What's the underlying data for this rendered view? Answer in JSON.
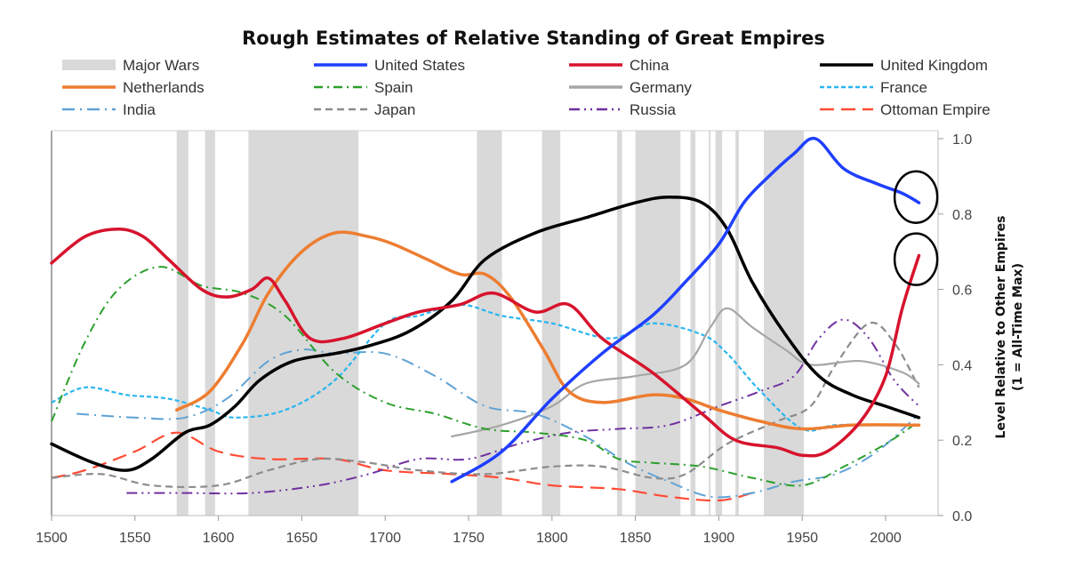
{
  "chart_data": {
    "type": "line",
    "title": "Rough Estimates of Relative Standing of Great Empires",
    "xlabel": "",
    "ylabel": "Level Relative to Other Empires",
    "ylabel_line2": "(1 = All-Time Max)",
    "xlim": [
      1500,
      2031
    ],
    "ylim": [
      0.0,
      1.0
    ],
    "x_ticks": [
      1500,
      1550,
      1600,
      1650,
      1700,
      1750,
      1800,
      1850,
      1900,
      1950,
      2000
    ],
    "x_tick_labels": [
      "1500",
      "1550",
      "1600",
      "1650",
      "1700",
      "1750",
      "1800",
      "1850",
      "1900",
      "1950",
      "2000"
    ],
    "y_ticks": [
      0.0,
      0.2,
      0.4,
      0.6,
      0.8,
      1.0
    ],
    "y_tick_labels": [
      "0.0",
      "0.2",
      "0.4",
      "0.6",
      "0.8",
      "1.0"
    ],
    "y_axis_side": "right",
    "grid": false,
    "legend_position": "top",
    "major_wars_label": "Major Wars",
    "major_wars_color": "#d9d9d9",
    "major_wars": [
      [
        1575,
        1582
      ],
      [
        1592,
        1598
      ],
      [
        1618,
        1684
      ],
      [
        1755,
        1770
      ],
      [
        1794,
        1805
      ],
      [
        1839,
        1842
      ],
      [
        1850,
        1877
      ],
      [
        1883,
        1886
      ],
      [
        1894,
        1895
      ],
      [
        1898,
        1902
      ],
      [
        1910,
        1912
      ],
      [
        1927,
        1951
      ]
    ],
    "annotations": [
      {
        "type": "circle",
        "target": "United States",
        "x": 2015,
        "y": 0.845
      },
      {
        "type": "circle",
        "target": "China",
        "x": 2015,
        "y": 0.68
      }
    ],
    "series": [
      {
        "name": "United States",
        "color": "#1f3fff",
        "style": "solid",
        "width": 3.5,
        "x": [
          1740,
          1770,
          1800,
          1830,
          1860,
          1880,
          1900,
          1915,
          1930,
          1945,
          1958,
          1975,
          1995,
          2010,
          2020
        ],
        "y": [
          0.09,
          0.17,
          0.31,
          0.43,
          0.53,
          0.62,
          0.72,
          0.83,
          0.9,
          0.96,
          1.0,
          0.92,
          0.88,
          0.855,
          0.83
        ]
      },
      {
        "name": "China",
        "color": "#d7132d",
        "style": "solid",
        "width": 3.5,
        "x": [
          1500,
          1520,
          1540,
          1555,
          1570,
          1590,
          1605,
          1620,
          1630,
          1640,
          1655,
          1675,
          1700,
          1720,
          1745,
          1765,
          1790,
          1810,
          1830,
          1860,
          1890,
          1910,
          1935,
          1950,
          1965,
          1985,
          2000,
          2010,
          2020
        ],
        "y": [
          0.67,
          0.74,
          0.76,
          0.74,
          0.68,
          0.6,
          0.58,
          0.6,
          0.63,
          0.57,
          0.47,
          0.47,
          0.51,
          0.54,
          0.56,
          0.59,
          0.54,
          0.56,
          0.47,
          0.38,
          0.27,
          0.2,
          0.18,
          0.16,
          0.17,
          0.25,
          0.37,
          0.55,
          0.69
        ]
      },
      {
        "name": "United Kingdom",
        "color": "#000000",
        "style": "solid",
        "width": 3.5,
        "x": [
          1500,
          1525,
          1545,
          1560,
          1580,
          1595,
          1610,
          1625,
          1645,
          1670,
          1690,
          1715,
          1740,
          1760,
          1790,
          1820,
          1850,
          1870,
          1890,
          1905,
          1920,
          1940,
          1960,
          1980,
          2000,
          2020
        ],
        "y": [
          0.19,
          0.14,
          0.12,
          0.15,
          0.22,
          0.24,
          0.29,
          0.36,
          0.41,
          0.43,
          0.45,
          0.49,
          0.57,
          0.68,
          0.75,
          0.79,
          0.83,
          0.845,
          0.83,
          0.76,
          0.62,
          0.48,
          0.37,
          0.32,
          0.29,
          0.26
        ]
      },
      {
        "name": "Netherlands",
        "color": "#ed7d31",
        "style": "solid",
        "width": 3.5,
        "x": [
          1575,
          1595,
          1615,
          1630,
          1650,
          1670,
          1690,
          1705,
          1725,
          1745,
          1760,
          1775,
          1795,
          1810,
          1830,
          1860,
          1880,
          1900,
          1925,
          1950,
          1980,
          2020
        ],
        "y": [
          0.28,
          0.33,
          0.46,
          0.59,
          0.7,
          0.75,
          0.74,
          0.72,
          0.68,
          0.64,
          0.64,
          0.58,
          0.44,
          0.33,
          0.3,
          0.32,
          0.31,
          0.28,
          0.25,
          0.23,
          0.24,
          0.24
        ]
      },
      {
        "name": "Spain",
        "color": "#2ca02c",
        "style": "dashdot",
        "width": 2,
        "x": [
          1500,
          1520,
          1540,
          1565,
          1590,
          1615,
          1640,
          1670,
          1700,
          1730,
          1760,
          1790,
          1820,
          1840,
          1860,
          1890,
          1920,
          1950,
          1975,
          2000,
          2020
        ],
        "y": [
          0.25,
          0.46,
          0.6,
          0.66,
          0.61,
          0.59,
          0.53,
          0.38,
          0.3,
          0.27,
          0.23,
          0.22,
          0.2,
          0.15,
          0.14,
          0.13,
          0.1,
          0.08,
          0.13,
          0.19,
          0.25
        ]
      },
      {
        "name": "Germany",
        "color": "#a6a6a6",
        "style": "solid",
        "width": 2.2,
        "x": [
          1740,
          1770,
          1800,
          1820,
          1850,
          1880,
          1895,
          1905,
          1920,
          1940,
          1955,
          1985,
          2010,
          2020
        ],
        "y": [
          0.21,
          0.24,
          0.29,
          0.35,
          0.37,
          0.4,
          0.5,
          0.55,
          0.5,
          0.44,
          0.4,
          0.41,
          0.38,
          0.35
        ]
      },
      {
        "name": "France",
        "color": "#29b6f0",
        "style": "dotted",
        "width": 2.2,
        "x": [
          1500,
          1520,
          1545,
          1570,
          1595,
          1610,
          1640,
          1670,
          1700,
          1720,
          1745,
          1770,
          1800,
          1835,
          1860,
          1890,
          1905,
          1925,
          1950,
          1970,
          2000,
          2020
        ],
        "y": [
          0.3,
          0.34,
          0.32,
          0.31,
          0.28,
          0.26,
          0.28,
          0.36,
          0.51,
          0.53,
          0.56,
          0.53,
          0.51,
          0.47,
          0.51,
          0.48,
          0.43,
          0.33,
          0.23,
          0.24,
          0.24,
          0.24
        ]
      },
      {
        "name": "India",
        "color": "#5fa2d4",
        "style": "longdashdot",
        "width": 2,
        "x": [
          1515,
          1550,
          1580,
          1605,
          1630,
          1650,
          1670,
          1700,
          1730,
          1760,
          1790,
          1820,
          1845,
          1870,
          1895,
          1920,
          1945,
          1970,
          1995,
          2020
        ],
        "y": [
          0.27,
          0.26,
          0.26,
          0.31,
          0.41,
          0.44,
          0.43,
          0.43,
          0.37,
          0.29,
          0.27,
          0.21,
          0.14,
          0.09,
          0.05,
          0.06,
          0.09,
          0.11,
          0.17,
          0.27
        ]
      },
      {
        "name": "Japan",
        "color": "#8c8c8c",
        "style": "dashed",
        "width": 2.2,
        "x": [
          1500,
          1530,
          1560,
          1600,
          1630,
          1660,
          1690,
          1720,
          1760,
          1800,
          1830,
          1860,
          1880,
          1905,
          1935,
          1955,
          1970,
          1990,
          2005,
          2020
        ],
        "y": [
          0.1,
          0.11,
          0.08,
          0.08,
          0.12,
          0.15,
          0.14,
          0.12,
          0.11,
          0.13,
          0.13,
          0.1,
          0.11,
          0.19,
          0.25,
          0.29,
          0.4,
          0.51,
          0.46,
          0.34
        ]
      },
      {
        "name": "Russia",
        "color": "#7030a0",
        "style": "dashdotdot",
        "width": 2,
        "x": [
          1545,
          1580,
          1620,
          1660,
          1690,
          1720,
          1750,
          1780,
          1810,
          1840,
          1870,
          1900,
          1925,
          1945,
          1960,
          1975,
          1990,
          2005,
          2020
        ],
        "y": [
          0.06,
          0.06,
          0.06,
          0.08,
          0.11,
          0.15,
          0.15,
          0.19,
          0.22,
          0.23,
          0.24,
          0.29,
          0.33,
          0.37,
          0.47,
          0.52,
          0.47,
          0.36,
          0.29
        ]
      },
      {
        "name": "Ottoman Empire",
        "color": "#ff4b33",
        "style": "longdash",
        "width": 2.2,
        "x": [
          1500,
          1520,
          1550,
          1575,
          1600,
          1630,
          1670,
          1700,
          1740,
          1770,
          1800,
          1840,
          1870,
          1900,
          1920
        ],
        "y": [
          0.1,
          0.12,
          0.17,
          0.22,
          0.17,
          0.15,
          0.15,
          0.12,
          0.11,
          0.1,
          0.08,
          0.07,
          0.05,
          0.04,
          0.06
        ]
      }
    ],
    "legend_order": [
      "Major Wars",
      "United States",
      "China",
      "United Kingdom",
      "Netherlands",
      "Spain",
      "Germany",
      "France",
      "India",
      "Japan",
      "Russia",
      "Ottoman Empire"
    ]
  }
}
